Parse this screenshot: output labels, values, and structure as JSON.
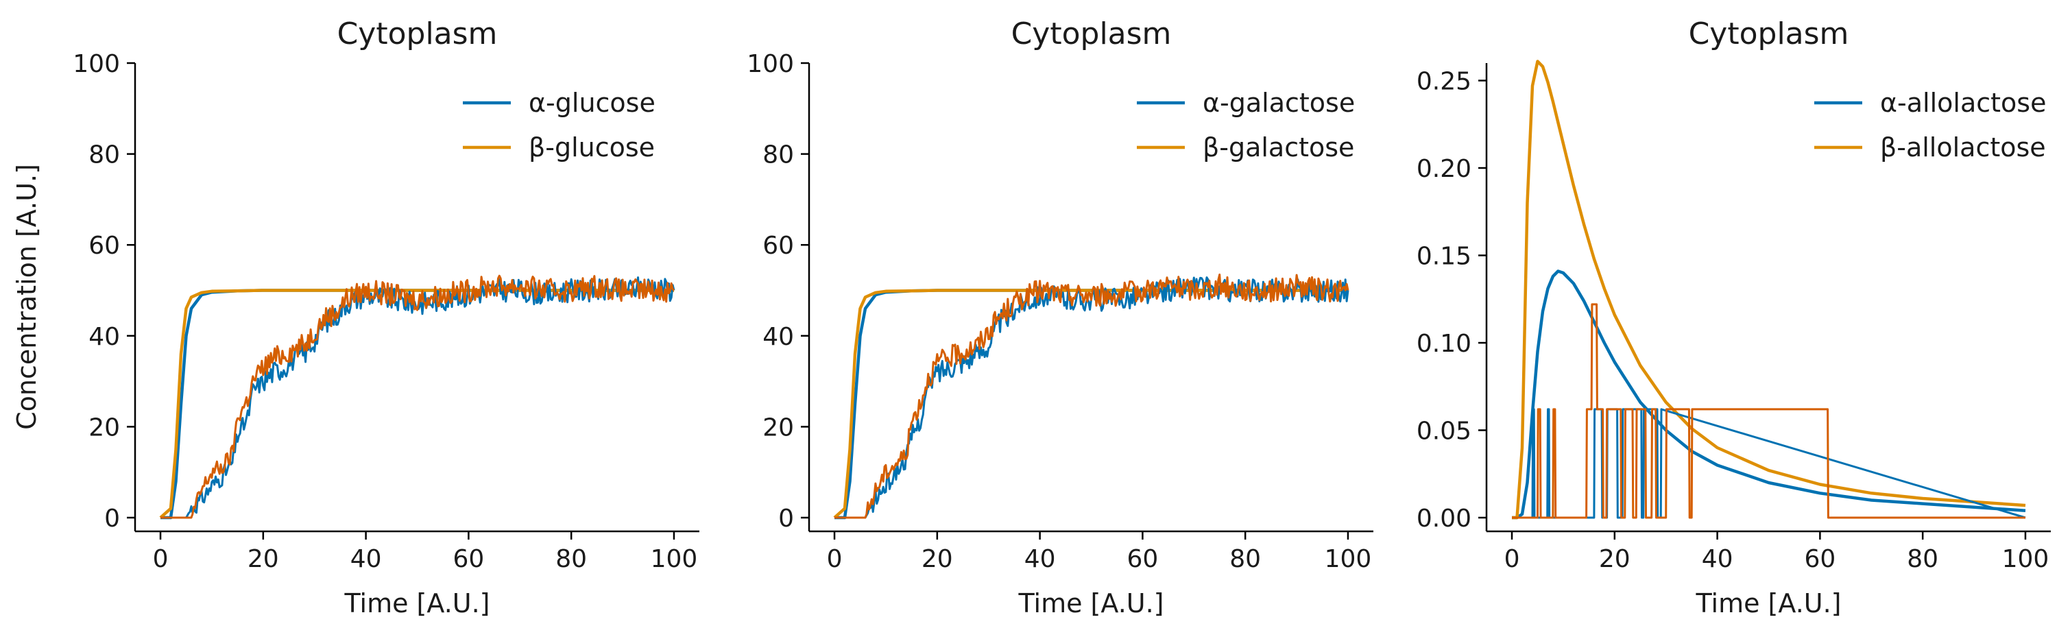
{
  "figure": {
    "ylabel": "Concentration [A.U.]"
  },
  "chart_data": [
    {
      "type": "line",
      "title": "Cytoplasm",
      "xlabel": "Time [A.U.]",
      "ylabel": "Concentration [A.U.]",
      "xlim": [
        0,
        100
      ],
      "ylim": [
        0,
        100
      ],
      "xticks": [
        0,
        20,
        40,
        60,
        80,
        100
      ],
      "yticks": [
        0,
        20,
        40,
        60,
        80,
        100
      ],
      "ytick_labels": [
        "0",
        "20",
        "40",
        "60",
        "80",
        "100"
      ],
      "legend": {
        "position": "top-right",
        "entries": [
          "α-glucose",
          "β-glucose"
        ]
      },
      "colors": {
        "alpha": "#0072b2",
        "beta": "#de8f05",
        "stochastic": "#d55e00"
      },
      "series": [
        {
          "name": "α-glucose",
          "kind": "deterministic",
          "x": [
            0,
            2,
            3,
            4,
            5,
            6,
            8,
            10,
            15,
            20,
            100
          ],
          "y": [
            0,
            0,
            8,
            25,
            40,
            46,
            49,
            49.6,
            49.9,
            50,
            50
          ]
        },
        {
          "name": "β-glucose",
          "kind": "deterministic",
          "x": [
            0,
            2,
            3,
            4,
            5,
            6,
            8,
            10,
            15,
            20,
            100
          ],
          "y": [
            0,
            2,
            15,
            36,
            46,
            48.5,
            49.5,
            49.8,
            49.9,
            50,
            50
          ]
        },
        {
          "name": "α-glucose (stochastic)",
          "kind": "stochastic",
          "x": [
            0,
            5,
            6,
            8,
            10,
            12,
            14,
            15,
            17,
            18,
            20,
            22,
            24,
            26,
            28,
            30,
            32,
            34,
            36,
            38,
            40,
            45,
            50,
            55,
            60,
            65,
            70,
            75,
            80,
            85,
            90,
            95,
            100
          ],
          "y": [
            0,
            0,
            2,
            4,
            7,
            9,
            12,
            18,
            22,
            28,
            30,
            32,
            33,
            35,
            36,
            39,
            43,
            44,
            47,
            48,
            49,
            48,
            47,
            48,
            49,
            50,
            50,
            49,
            50,
            50,
            50,
            51,
            50
          ]
        },
        {
          "name": "β-glucose (stochastic)",
          "kind": "stochastic",
          "x": [
            0,
            6,
            7,
            8,
            10,
            12,
            14,
            15,
            17,
            18,
            20,
            22,
            24,
            26,
            28,
            30,
            32,
            34,
            36,
            38,
            40,
            45,
            50,
            55,
            60,
            65,
            70,
            75,
            80,
            85,
            90,
            95,
            100
          ],
          "y": [
            0,
            0,
            3,
            6,
            10,
            11,
            14,
            22,
            26,
            30,
            33,
            35,
            36,
            37,
            38,
            41,
            44,
            45,
            48,
            49,
            50,
            49,
            48,
            49,
            50,
            51,
            51,
            50,
            50,
            51,
            50,
            50,
            50
          ]
        }
      ]
    },
    {
      "type": "line",
      "title": "Cytoplasm",
      "xlabel": "Time [A.U.]",
      "xlim": [
        0,
        100
      ],
      "ylim": [
        0,
        100
      ],
      "xticks": [
        0,
        20,
        40,
        60,
        80,
        100
      ],
      "yticks": [
        0,
        20,
        40,
        60,
        80,
        100
      ],
      "ytick_labels": [
        "0",
        "20",
        "40",
        "60",
        "80",
        "100"
      ],
      "legend": {
        "position": "top-right",
        "entries": [
          "α-galactose",
          "β-galactose"
        ]
      },
      "colors": {
        "alpha": "#0072b2",
        "beta": "#de8f05",
        "stochastic": "#d55e00"
      },
      "series": [
        {
          "name": "α-galactose",
          "kind": "deterministic",
          "x": [
            0,
            2,
            3,
            4,
            5,
            6,
            8,
            10,
            15,
            20,
            100
          ],
          "y": [
            0,
            0,
            8,
            25,
            40,
            46,
            49,
            49.6,
            49.9,
            50,
            50
          ]
        },
        {
          "name": "β-galactose",
          "kind": "deterministic",
          "x": [
            0,
            2,
            3,
            4,
            5,
            6,
            8,
            10,
            15,
            20,
            100
          ],
          "y": [
            0,
            2,
            15,
            36,
            46,
            48.5,
            49.5,
            49.8,
            49.9,
            50,
            50
          ]
        },
        {
          "name": "α-galactose (stochastic)",
          "kind": "stochastic",
          "x": [
            0,
            6,
            7,
            8,
            10,
            12,
            14,
            15,
            17,
            18,
            20,
            22,
            24,
            26,
            28,
            30,
            32,
            34,
            36,
            38,
            40,
            45,
            50,
            55,
            60,
            65,
            70,
            75,
            80,
            85,
            90,
            95,
            100
          ],
          "y": [
            0,
            0,
            2,
            4,
            7,
            10,
            13,
            18,
            22,
            28,
            32,
            33,
            34,
            35,
            36,
            38,
            43,
            44,
            47,
            48,
            49,
            48,
            48,
            48,
            49,
            50,
            51,
            50,
            50,
            50,
            50,
            50,
            50
          ]
        },
        {
          "name": "β-galactose (stochastic)",
          "kind": "stochastic",
          "x": [
            0,
            6,
            7,
            8,
            10,
            12,
            14,
            15,
            17,
            18,
            20,
            22,
            24,
            26,
            28,
            30,
            32,
            34,
            36,
            38,
            40,
            45,
            50,
            55,
            60,
            65,
            70,
            75,
            80,
            85,
            90,
            95,
            100
          ],
          "y": [
            0,
            0,
            3,
            6,
            10,
            12,
            14,
            21,
            26,
            30,
            34,
            35,
            36,
            37,
            38,
            41,
            44,
            46,
            48,
            49,
            50,
            49,
            49,
            49,
            50,
            51,
            50,
            51,
            50,
            50,
            51,
            50,
            50
          ]
        }
      ]
    },
    {
      "type": "line",
      "title": "Cytoplasm",
      "xlabel": "Time [A.U.]",
      "xlim": [
        0,
        100
      ],
      "ylim": [
        0,
        0.26
      ],
      "xticks": [
        0,
        20,
        40,
        60,
        80,
        100
      ],
      "yticks": [
        0,
        0.05,
        0.1,
        0.15,
        0.2,
        0.25
      ],
      "ytick_labels": [
        "0.00",
        "0.05",
        "0.10",
        "0.15",
        "0.20",
        "0.25"
      ],
      "legend": {
        "position": "top-right",
        "entries": [
          "α-allolactose",
          "β-allolactose"
        ]
      },
      "colors": {
        "alpha": "#0072b2",
        "beta": "#de8f05",
        "stochastic": "#d55e00"
      },
      "series": [
        {
          "name": "α-allolactose",
          "kind": "deterministic",
          "x": [
            0,
            1,
            2,
            3,
            4,
            5,
            6,
            7,
            8,
            9,
            10,
            12,
            14,
            16,
            18,
            20,
            25,
            30,
            35,
            40,
            50,
            60,
            70,
            80,
            90,
            100
          ],
          "y": [
            0,
            0,
            0.002,
            0.02,
            0.06,
            0.095,
            0.118,
            0.131,
            0.138,
            0.141,
            0.14,
            0.134,
            0.124,
            0.112,
            0.1,
            0.089,
            0.066,
            0.05,
            0.038,
            0.03,
            0.02,
            0.014,
            0.01,
            0.008,
            0.006,
            0.004
          ]
        },
        {
          "name": "β-allolactose",
          "kind": "deterministic",
          "x": [
            0,
            1,
            2,
            3,
            4,
            5,
            6,
            7,
            8,
            9,
            10,
            12,
            14,
            16,
            18,
            20,
            25,
            30,
            35,
            40,
            50,
            60,
            70,
            80,
            90,
            100
          ],
          "y": [
            0,
            0,
            0.04,
            0.18,
            0.247,
            0.261,
            0.258,
            0.249,
            0.238,
            0.226,
            0.214,
            0.19,
            0.168,
            0.148,
            0.131,
            0.116,
            0.087,
            0.066,
            0.051,
            0.04,
            0.027,
            0.019,
            0.014,
            0.011,
            0.009,
            0.007
          ]
        },
        {
          "name": "α-allolactose (stochastic)",
          "kind": "stochastic",
          "x": [
            0,
            4.0,
            4.1,
            4.3,
            4.4,
            6.9,
            7.0,
            7.2,
            7.3,
            16.0,
            16.1,
            17.5,
            17.6,
            18.5,
            18.6,
            20.5,
            20.6,
            21.5,
            21.6,
            25.2,
            25.3,
            25.6,
            25.7,
            28.3,
            28.4,
            29.0,
            29.1,
            100
          ],
          "y": [
            0,
            0,
            0.062,
            0.062,
            0,
            0,
            0.062,
            0.062,
            0,
            0,
            0.062,
            0.062,
            0,
            0,
            0.062,
            0.062,
            0,
            0,
            0.062,
            0.062,
            0,
            0,
            0.062,
            0.062,
            0,
            0,
            0.062,
            0
          ]
        },
        {
          "name": "β-allolactose (stochastic)",
          "kind": "stochastic",
          "x": [
            0,
            5.0,
            5.1,
            5.5,
            5.6,
            8.0,
            8.1,
            8.4,
            8.5,
            14.5,
            14.6,
            15.5,
            15.6,
            16.5,
            16.6,
            17.7,
            17.8,
            18.4,
            18.5,
            21.2,
            21.3,
            22.0,
            22.1,
            23.5,
            23.6,
            24.2,
            24.3,
            26.0,
            26.1,
            27.2,
            27.3,
            28.0,
            28.1,
            30.0,
            30.1,
            34.5,
            34.6,
            35.0,
            35.1,
            61.5,
            61.6,
            64.2,
            64.3,
            100
          ],
          "y": [
            0,
            0,
            0.062,
            0.062,
            0,
            0,
            0.062,
            0.062,
            0,
            0,
            0.062,
            0.062,
            0.122,
            0.122,
            0.062,
            0.062,
            0,
            0,
            0.062,
            0.062,
            0,
            0,
            0.062,
            0.062,
            0,
            0,
            0.062,
            0.062,
            0,
            0,
            0.062,
            0.062,
            0,
            0,
            0.062,
            0.062,
            0,
            0,
            0.062,
            0.062,
            0,
            0,
            0,
            0
          ]
        }
      ]
    }
  ]
}
